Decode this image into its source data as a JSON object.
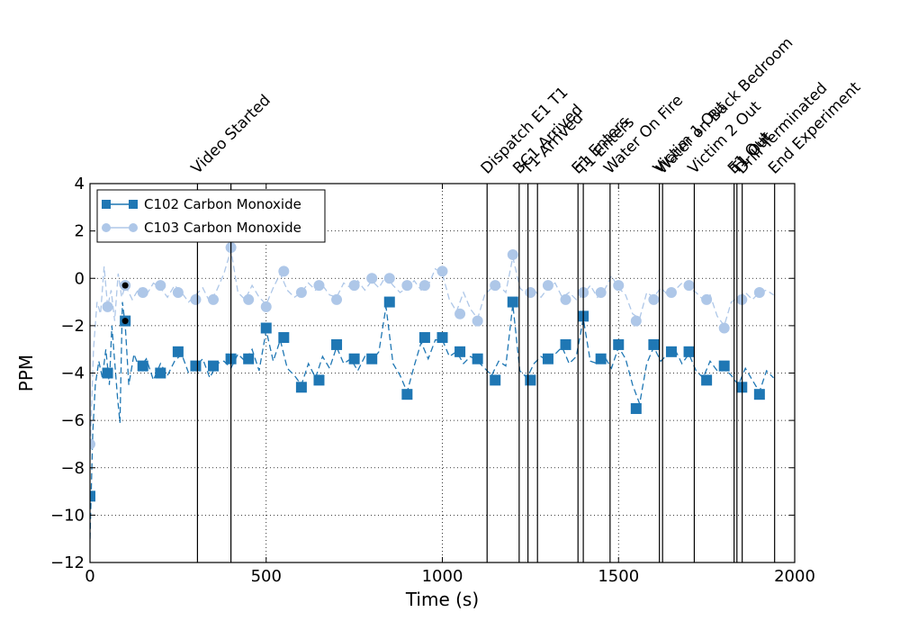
{
  "chart_data": {
    "type": "line",
    "xlabel": "Time (s)",
    "ylabel": "PPM",
    "xlim": [
      0,
      2000
    ],
    "ylim": [
      -12,
      4
    ],
    "xticks": [
      0,
      500,
      1000,
      1500,
      2000
    ],
    "yticks": [
      -12,
      -10,
      -8,
      -6,
      -4,
      -2,
      0,
      2,
      4
    ],
    "xtick_labels": [
      "0",
      "500",
      "1000",
      "1500",
      "2000"
    ],
    "ytick_labels": [
      "−12",
      "−10",
      "−8",
      "−6",
      "−4",
      "−2",
      "0",
      "2",
      "4"
    ],
    "grid": true,
    "legend_position": "top-left",
    "series": [
      {
        "name": "C102 Carbon Monoxide",
        "color": "#1f77b4",
        "marker": "square",
        "markers": [
          [
            0,
            -9.2
          ],
          [
            50,
            -4.0
          ],
          [
            100,
            -1.8
          ],
          [
            150,
            -3.7
          ],
          [
            200,
            -4.0
          ],
          [
            250,
            -3.1
          ],
          [
            300,
            -3.7
          ],
          [
            350,
            -3.7
          ],
          [
            400,
            -3.4
          ],
          [
            450,
            -3.4
          ],
          [
            500,
            -2.1
          ],
          [
            550,
            -2.5
          ],
          [
            600,
            -4.6
          ],
          [
            650,
            -4.3
          ],
          [
            700,
            -2.8
          ],
          [
            750,
            -3.4
          ],
          [
            800,
            -3.4
          ],
          [
            850,
            -1.0
          ],
          [
            900,
            -4.9
          ],
          [
            950,
            -2.5
          ],
          [
            1000,
            -2.5
          ],
          [
            1050,
            -3.1
          ],
          [
            1100,
            -3.4
          ],
          [
            1150,
            -4.3
          ],
          [
            1200,
            -1.0
          ],
          [
            1250,
            -4.3
          ],
          [
            1300,
            -3.4
          ],
          [
            1350,
            -2.8
          ],
          [
            1400,
            -1.6
          ],
          [
            1450,
            -3.4
          ],
          [
            1500,
            -2.8
          ],
          [
            1550,
            -5.5
          ],
          [
            1600,
            -2.8
          ],
          [
            1650,
            -3.1
          ],
          [
            1700,
            -3.1
          ],
          [
            1750,
            -4.3
          ],
          [
            1800,
            -3.7
          ],
          [
            1850,
            -4.6
          ],
          [
            1900,
            -4.9
          ]
        ],
        "line": [
          [
            0,
            -11.0
          ],
          [
            8,
            -6.5
          ],
          [
            15,
            -4.5
          ],
          [
            25,
            -3.5
          ],
          [
            35,
            -4.2
          ],
          [
            45,
            -3.0
          ],
          [
            55,
            -4.5
          ],
          [
            62,
            -2.0
          ],
          [
            70,
            -3.5
          ],
          [
            78,
            -5.0
          ],
          [
            85,
            -6.1
          ],
          [
            92,
            -1.0
          ],
          [
            100,
            -2.0
          ],
          [
            110,
            -4.5
          ],
          [
            125,
            -3.2
          ],
          [
            140,
            -3.8
          ],
          [
            160,
            -3.4
          ],
          [
            180,
            -4.3
          ],
          [
            200,
            -3.6
          ],
          [
            220,
            -4.1
          ],
          [
            240,
            -3.5
          ],
          [
            260,
            -3.2
          ],
          [
            280,
            -4.0
          ],
          [
            300,
            -3.7
          ],
          [
            320,
            -3.4
          ],
          [
            340,
            -4.2
          ],
          [
            360,
            -3.6
          ],
          [
            380,
            -3.5
          ],
          [
            400,
            -3.8
          ],
          [
            420,
            -3.2
          ],
          [
            440,
            -3.5
          ],
          [
            460,
            -3.0
          ],
          [
            480,
            -3.9
          ],
          [
            500,
            -2.2
          ],
          [
            520,
            -3.5
          ],
          [
            540,
            -2.6
          ],
          [
            560,
            -3.8
          ],
          [
            580,
            -4.1
          ],
          [
            600,
            -4.5
          ],
          [
            620,
            -3.6
          ],
          [
            640,
            -4.2
          ],
          [
            660,
            -3.3
          ],
          [
            680,
            -3.8
          ],
          [
            700,
            -2.9
          ],
          [
            720,
            -3.6
          ],
          [
            740,
            -3.4
          ],
          [
            760,
            -3.9
          ],
          [
            780,
            -3.3
          ],
          [
            800,
            -3.5
          ],
          [
            820,
            -3.1
          ],
          [
            840,
            -1.2
          ],
          [
            860,
            -3.6
          ],
          [
            880,
            -4.1
          ],
          [
            900,
            -4.8
          ],
          [
            920,
            -3.7
          ],
          [
            940,
            -2.7
          ],
          [
            960,
            -3.4
          ],
          [
            980,
            -2.6
          ],
          [
            1000,
            -2.6
          ],
          [
            1020,
            -3.3
          ],
          [
            1040,
            -3.1
          ],
          [
            1060,
            -3.6
          ],
          [
            1080,
            -3.3
          ],
          [
            1100,
            -3.5
          ],
          [
            1120,
            -3.8
          ],
          [
            1140,
            -4.1
          ],
          [
            1160,
            -3.5
          ],
          [
            1180,
            -3.7
          ],
          [
            1200,
            -1.1
          ],
          [
            1220,
            -3.9
          ],
          [
            1240,
            -4.2
          ],
          [
            1260,
            -3.6
          ],
          [
            1280,
            -3.3
          ],
          [
            1300,
            -3.5
          ],
          [
            1320,
            -3.2
          ],
          [
            1340,
            -2.9
          ],
          [
            1360,
            -3.6
          ],
          [
            1380,
            -3.3
          ],
          [
            1400,
            -1.7
          ],
          [
            1420,
            -3.5
          ],
          [
            1440,
            -3.6
          ],
          [
            1460,
            -3.3
          ],
          [
            1480,
            -3.8
          ],
          [
            1500,
            -2.9
          ],
          [
            1520,
            -3.4
          ],
          [
            1540,
            -4.5
          ],
          [
            1560,
            -5.3
          ],
          [
            1580,
            -3.6
          ],
          [
            1600,
            -2.9
          ],
          [
            1620,
            -3.5
          ],
          [
            1640,
            -3.2
          ],
          [
            1660,
            -3.0
          ],
          [
            1680,
            -3.6
          ],
          [
            1700,
            -3.2
          ],
          [
            1720,
            -3.9
          ],
          [
            1740,
            -4.2
          ],
          [
            1760,
            -3.5
          ],
          [
            1780,
            -3.9
          ],
          [
            1800,
            -3.8
          ],
          [
            1820,
            -4.1
          ],
          [
            1840,
            -4.5
          ],
          [
            1860,
            -3.8
          ],
          [
            1880,
            -4.3
          ],
          [
            1900,
            -4.8
          ],
          [
            1920,
            -3.9
          ],
          [
            1940,
            -4.2
          ]
        ]
      },
      {
        "name": "C103 Carbon Monoxide",
        "color": "#aec7e8",
        "marker": "circle",
        "markers": [
          [
            0,
            -7.0
          ],
          [
            50,
            -1.2
          ],
          [
            100,
            -0.3
          ],
          [
            150,
            -0.6
          ],
          [
            200,
            -0.3
          ],
          [
            250,
            -0.6
          ],
          [
            300,
            -0.9
          ],
          [
            350,
            -0.9
          ],
          [
            400,
            1.3
          ],
          [
            450,
            -0.9
          ],
          [
            500,
            -1.2
          ],
          [
            550,
            0.3
          ],
          [
            600,
            -0.6
          ],
          [
            650,
            -0.3
          ],
          [
            700,
            -0.9
          ],
          [
            750,
            -0.3
          ],
          [
            800,
            0.0
          ],
          [
            850,
            0.0
          ],
          [
            900,
            -0.3
          ],
          [
            950,
            -0.3
          ],
          [
            1000,
            0.3
          ],
          [
            1050,
            -1.5
          ],
          [
            1100,
            -1.8
          ],
          [
            1150,
            -0.3
          ],
          [
            1200,
            1.0
          ],
          [
            1250,
            -0.6
          ],
          [
            1300,
            -0.3
          ],
          [
            1350,
            -0.9
          ],
          [
            1400,
            -0.6
          ],
          [
            1450,
            -0.6
          ],
          [
            1500,
            -0.3
          ],
          [
            1550,
            -1.8
          ],
          [
            1600,
            -0.9
          ],
          [
            1650,
            -0.6
          ],
          [
            1700,
            -0.3
          ],
          [
            1750,
            -0.9
          ],
          [
            1800,
            -2.1
          ],
          [
            1850,
            -0.9
          ],
          [
            1900,
            -0.6
          ]
        ],
        "line": [
          [
            0,
            -7.5
          ],
          [
            10,
            -3.0
          ],
          [
            20,
            -1.0
          ],
          [
            30,
            -1.5
          ],
          [
            40,
            0.5
          ],
          [
            50,
            -1.2
          ],
          [
            60,
            -0.5
          ],
          [
            70,
            -1.8
          ],
          [
            80,
            0.2
          ],
          [
            90,
            -0.8
          ],
          [
            100,
            -0.3
          ],
          [
            120,
            -0.9
          ],
          [
            140,
            -0.4
          ],
          [
            160,
            -0.7
          ],
          [
            180,
            -0.2
          ],
          [
            200,
            -0.4
          ],
          [
            220,
            -0.8
          ],
          [
            240,
            -0.3
          ],
          [
            260,
            -0.6
          ],
          [
            280,
            -1.0
          ],
          [
            300,
            -0.7
          ],
          [
            320,
            -0.4
          ],
          [
            340,
            -1.0
          ],
          [
            360,
            -0.5
          ],
          [
            380,
            0.2
          ],
          [
            400,
            1.2
          ],
          [
            420,
            -0.6
          ],
          [
            440,
            -0.9
          ],
          [
            460,
            -0.3
          ],
          [
            480,
            -0.8
          ],
          [
            500,
            -1.1
          ],
          [
            520,
            -0.4
          ],
          [
            540,
            0.2
          ],
          [
            560,
            -0.5
          ],
          [
            580,
            -0.8
          ],
          [
            600,
            -0.6
          ],
          [
            620,
            -0.2
          ],
          [
            640,
            -0.5
          ],
          [
            660,
            -0.3
          ],
          [
            680,
            -0.7
          ],
          [
            700,
            -0.8
          ],
          [
            720,
            -0.2
          ],
          [
            740,
            -0.4
          ],
          [
            760,
            -0.1
          ],
          [
            780,
            -0.5
          ],
          [
            800,
            -0.1
          ],
          [
            820,
            -0.4
          ],
          [
            840,
            0.1
          ],
          [
            860,
            -0.3
          ],
          [
            880,
            -0.6
          ],
          [
            900,
            -0.4
          ],
          [
            920,
            -0.1
          ],
          [
            940,
            -0.5
          ],
          [
            960,
            -0.3
          ],
          [
            980,
            0.4
          ],
          [
            1000,
            0.2
          ],
          [
            1020,
            -0.9
          ],
          [
            1040,
            -1.4
          ],
          [
            1060,
            -0.6
          ],
          [
            1080,
            -1.3
          ],
          [
            1100,
            -1.7
          ],
          [
            1120,
            -0.7
          ],
          [
            1140,
            -0.4
          ],
          [
            1160,
            -0.3
          ],
          [
            1180,
            -0.6
          ],
          [
            1200,
            0.9
          ],
          [
            1220,
            -0.4
          ],
          [
            1240,
            -0.7
          ],
          [
            1260,
            -0.5
          ],
          [
            1280,
            -0.8
          ],
          [
            1300,
            -0.4
          ],
          [
            1320,
            -0.2
          ],
          [
            1340,
            -0.8
          ],
          [
            1360,
            -0.6
          ],
          [
            1380,
            -0.9
          ],
          [
            1400,
            -0.7
          ],
          [
            1420,
            -0.3
          ],
          [
            1440,
            -0.8
          ],
          [
            1460,
            -0.5
          ],
          [
            1480,
            0.1
          ],
          [
            1500,
            -0.4
          ],
          [
            1520,
            -0.7
          ],
          [
            1540,
            -1.5
          ],
          [
            1560,
            -1.7
          ],
          [
            1580,
            -0.6
          ],
          [
            1600,
            -0.8
          ],
          [
            1620,
            -0.4
          ],
          [
            1640,
            -0.7
          ],
          [
            1660,
            -0.5
          ],
          [
            1680,
            -0.2
          ],
          [
            1700,
            -0.4
          ],
          [
            1720,
            -0.6
          ],
          [
            1740,
            -0.9
          ],
          [
            1760,
            -0.7
          ],
          [
            1780,
            -1.6
          ],
          [
            1800,
            -2.0
          ],
          [
            1820,
            -1.0
          ],
          [
            1840,
            -0.8
          ],
          [
            1860,
            -0.6
          ],
          [
            1880,
            -0.9
          ],
          [
            1900,
            -0.6
          ],
          [
            1920,
            -0.5
          ],
          [
            1940,
            -0.7
          ]
        ]
      }
    ],
    "extra_points": [
      [
        100,
        -0.3
      ],
      [
        100,
        -1.8
      ]
    ],
    "events": [
      {
        "time": 305,
        "label": "Video Started"
      },
      {
        "time": 400,
        "label": ""
      },
      {
        "time": 1127,
        "label": "Dispatch E1 T1"
      },
      {
        "time": 1218,
        "label": "BC1 Arrived"
      },
      {
        "time": 1243,
        "label": "T1 Arrived"
      },
      {
        "time": 1270,
        "label": ""
      },
      {
        "time": 1385,
        "label": "E1 Enters"
      },
      {
        "time": 1400,
        "label": "T1 Enters"
      },
      {
        "time": 1476,
        "label": "Water On Fire"
      },
      {
        "time": 1616,
        "label": "Victim 1 Out"
      },
      {
        "time": 1625,
        "label": "Water on Back Bedroom"
      },
      {
        "time": 1715,
        "label": "Victim 2 Out"
      },
      {
        "time": 1828,
        "label": "E1 Out"
      },
      {
        "time": 1836,
        "label": "T1 Out"
      },
      {
        "time": 1851,
        "label": "Drill Terminated"
      },
      {
        "time": 1943,
        "label": "End Experiment"
      }
    ]
  }
}
